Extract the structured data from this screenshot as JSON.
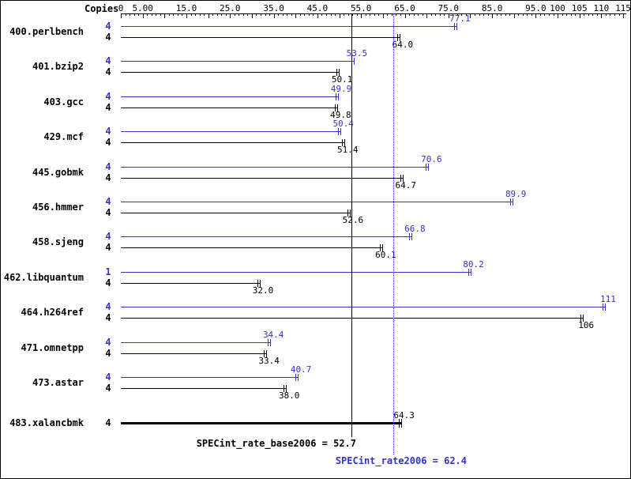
{
  "chart_data": {
    "type": "bar",
    "orientation": "horizontal",
    "copies_header": "Copies",
    "x_axis": {
      "min": 0,
      "max": 115,
      "major_tick_step": 5,
      "minor_tick_step": 1,
      "tick_labels": [
        {
          "value": 0,
          "label": "0"
        },
        {
          "value": 5,
          "label": "5.00"
        },
        {
          "value": 15,
          "label": "15.0"
        },
        {
          "value": 25,
          "label": "25.0"
        },
        {
          "value": 35,
          "label": "35.0"
        },
        {
          "value": 45,
          "label": "45.0"
        },
        {
          "value": 55,
          "label": "55.0"
        },
        {
          "value": 65,
          "label": "65.0"
        },
        {
          "value": 75,
          "label": "75.0"
        },
        {
          "value": 85,
          "label": "85.0"
        },
        {
          "value": 95,
          "label": "95.0"
        },
        {
          "value": 100,
          "label": "100"
        },
        {
          "value": 105,
          "label": "105"
        },
        {
          "value": 110,
          "label": "110"
        },
        {
          "value": 115,
          "label": "115"
        }
      ]
    },
    "series_colors": {
      "peak": "#3333cc",
      "base": "#000000"
    },
    "benchmarks": [
      {
        "name": "400.perlbench",
        "peak": {
          "copies": 4,
          "value": 77.1,
          "label": "77.1"
        },
        "base": {
          "copies": 4,
          "value": 64.0,
          "label": "64.0"
        }
      },
      {
        "name": "401.bzip2",
        "peak": {
          "copies": 4,
          "value": 53.5,
          "label": "53.5"
        },
        "base": {
          "copies": 4,
          "value": 50.1,
          "label": "50.1"
        }
      },
      {
        "name": "403.gcc",
        "peak": {
          "copies": 4,
          "value": 49.9,
          "label": "49.9"
        },
        "base": {
          "copies": 4,
          "value": 49.8,
          "label": "49.8"
        }
      },
      {
        "name": "429.mcf",
        "peak": {
          "copies": 4,
          "value": 50.4,
          "label": "50.4"
        },
        "base": {
          "copies": 4,
          "value": 51.4,
          "label": "51.4"
        }
      },
      {
        "name": "445.gobmk",
        "peak": {
          "copies": 4,
          "value": 70.6,
          "label": "70.6"
        },
        "base": {
          "copies": 4,
          "value": 64.7,
          "label": "64.7"
        }
      },
      {
        "name": "456.hmmer",
        "peak": {
          "copies": 4,
          "value": 89.9,
          "label": "89.9"
        },
        "base": {
          "copies": 4,
          "value": 52.6,
          "label": "52.6"
        }
      },
      {
        "name": "458.sjeng",
        "peak": {
          "copies": 4,
          "value": 66.8,
          "label": "66.8"
        },
        "base": {
          "copies": 4,
          "value": 60.1,
          "label": "60.1"
        }
      },
      {
        "name": "462.libquantum",
        "peak": {
          "copies": 1,
          "value": 80.2,
          "label": "80.2"
        },
        "base": {
          "copies": 4,
          "value": 32.0,
          "label": "32.0"
        }
      },
      {
        "name": "464.h264ref",
        "peak": {
          "copies": 4,
          "value": 111,
          "label": "111"
        },
        "base": {
          "copies": 4,
          "value": 106,
          "label": "106"
        }
      },
      {
        "name": "471.omnetpp",
        "peak": {
          "copies": 4,
          "value": 34.4,
          "label": "34.4"
        },
        "base": {
          "copies": 4,
          "value": 33.4,
          "label": "33.4"
        }
      },
      {
        "name": "473.astar",
        "peak": {
          "copies": 4,
          "value": 40.7,
          "label": "40.7"
        },
        "base": {
          "copies": 4,
          "value": 38.0,
          "label": "38.0"
        }
      },
      {
        "name": "483.xalancbmk",
        "peak": null,
        "base": {
          "copies": 4,
          "value": 64.3,
          "label": "64.3",
          "thick": true,
          "label_above": true
        }
      }
    ],
    "reference_lines": [
      {
        "name": "SPECint_rate_base2006",
        "value": 52.7,
        "line_style": "solid",
        "color": "#000000"
      },
      {
        "name": "SPECint_rate2006",
        "value": 62.4,
        "line_style": "dotted",
        "color": "#3333cc"
      }
    ],
    "summary": {
      "base_text": "SPECint_rate_base2006 = 52.7",
      "peak_text": "SPECint_rate2006 = 62.4"
    }
  }
}
